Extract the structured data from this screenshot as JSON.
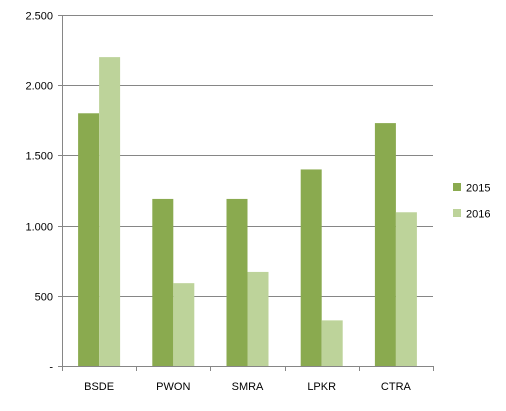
{
  "chart_data": {
    "type": "bar",
    "title": "",
    "xlabel": "",
    "ylabel": "",
    "categories": [
      "BSDE",
      "PWON",
      "SMRA",
      "LPKR",
      "CTRA"
    ],
    "series": [
      {
        "name": "2015",
        "color": "#8aaa4f",
        "values": [
          1800,
          1190,
          1190,
          1400,
          1730
        ]
      },
      {
        "name": "2016",
        "color": "#bdd39a",
        "values": [
          2200,
          590,
          670,
          325,
          1095
        ]
      }
    ],
    "ylim": [
      0,
      2500
    ],
    "yticks": [
      {
        "value": 0,
        "label": "-"
      },
      {
        "value": 500,
        "label": "500"
      },
      {
        "value": 1000,
        "label": "1.000"
      },
      {
        "value": 1500,
        "label": "1.500"
      },
      {
        "value": 2000,
        "label": "2.000"
      },
      {
        "value": 2500,
        "label": "2.500"
      }
    ],
    "grid": true,
    "legend_position": "right",
    "axis_color": "#868686",
    "grid_color": "#868686"
  }
}
